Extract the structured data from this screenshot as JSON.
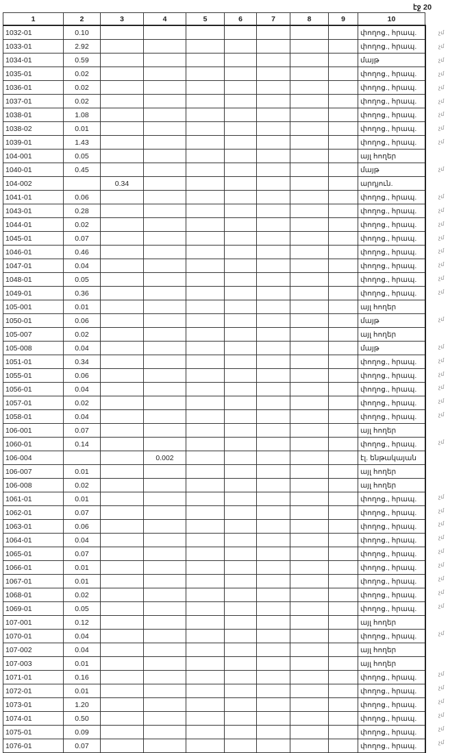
{
  "page_label": "էջ 20",
  "columns": [
    "1",
    "2",
    "3",
    "4",
    "5",
    "6",
    "7",
    "8",
    "9",
    "10"
  ],
  "rows": [
    {
      "c1": "1032-01",
      "c2": "0.10",
      "c3": "",
      "c4": "",
      "c10": "փողոց., հրապ.",
      "mark": "չմ"
    },
    {
      "c1": "1033-01",
      "c2": "2.92",
      "c3": "",
      "c4": "",
      "c10": "փողոց., հրապ.",
      "mark": "չմ"
    },
    {
      "c1": "1034-01",
      "c2": "0.59",
      "c3": "",
      "c4": "",
      "c10": "մայթ",
      "mark": "չմ"
    },
    {
      "c1": "1035-01",
      "c2": "0.02",
      "c3": "",
      "c4": "",
      "c10": "փողոց., հրապ.",
      "mark": "չմ"
    },
    {
      "c1": "1036-01",
      "c2": "0.02",
      "c3": "",
      "c4": "",
      "c10": "փողոց., հրապ.",
      "mark": "չմ"
    },
    {
      "c1": "1037-01",
      "c2": "0.02",
      "c3": "",
      "c4": "",
      "c10": "փողոց., հրապ.",
      "mark": "չմ"
    },
    {
      "c1": "1038-01",
      "c2": "1.08",
      "c3": "",
      "c4": "",
      "c10": "փողոց., հրապ.",
      "mark": "չմ"
    },
    {
      "c1": "1038-02",
      "c2": "0.01",
      "c3": "",
      "c4": "",
      "c10": "փողոց., հրապ.",
      "mark": "չմ"
    },
    {
      "c1": "1039-01",
      "c2": "1.43",
      "c3": "",
      "c4": "",
      "c10": "փողոց., հրապ.",
      "mark": "չմ"
    },
    {
      "c1": "104-001",
      "c2": "0.05",
      "c3": "",
      "c4": "",
      "c10": "այլ հողեր",
      "mark": ""
    },
    {
      "c1": "1040-01",
      "c2": "0.45",
      "c3": "",
      "c4": "",
      "c10": "մայթ",
      "mark": "չմ"
    },
    {
      "c1": "104-002",
      "c2": "",
      "c3": "0.34",
      "c4": "",
      "c10": "արդյուն.",
      "mark": ""
    },
    {
      "c1": "1041-01",
      "c2": "0.06",
      "c3": "",
      "c4": "",
      "c10": "փողոց., հրապ.",
      "mark": "չմ"
    },
    {
      "c1": "1043-01",
      "c2": "0.28",
      "c3": "",
      "c4": "",
      "c10": "փողոց., հրապ.",
      "mark": "չմ"
    },
    {
      "c1": "1044-01",
      "c2": "0.02",
      "c3": "",
      "c4": "",
      "c10": "փողոց., հրապ.",
      "mark": "չմ"
    },
    {
      "c1": "1045-01",
      "c2": "0.07",
      "c3": "",
      "c4": "",
      "c10": "փողոց., հրապ.",
      "mark": "չմ"
    },
    {
      "c1": "1046-01",
      "c2": "0.46",
      "c3": "",
      "c4": "",
      "c10": "փողոց., հրապ.",
      "mark": "չմ"
    },
    {
      "c1": "1047-01",
      "c2": "0.04",
      "c3": "",
      "c4": "",
      "c10": "փողոց., հրապ.",
      "mark": "չմ"
    },
    {
      "c1": "1048-01",
      "c2": "0.05",
      "c3": "",
      "c4": "",
      "c10": "փողոց., հրապ.",
      "mark": "չմ"
    },
    {
      "c1": "1049-01",
      "c2": "0.36",
      "c3": "",
      "c4": "",
      "c10": "փողոց., հրապ.",
      "mark": "չմ"
    },
    {
      "c1": "105-001",
      "c2": "0.01",
      "c3": "",
      "c4": "",
      "c10": "այլ հողեր",
      "mark": ""
    },
    {
      "c1": "1050-01",
      "c2": "0.06",
      "c3": "",
      "c4": "",
      "c10": "մայթ",
      "mark": "չմ"
    },
    {
      "c1": "105-007",
      "c2": "0.02",
      "c3": "",
      "c4": "",
      "c10": "այլ հողեր",
      "mark": ""
    },
    {
      "c1": "105-008",
      "c2": "0.04",
      "c3": "",
      "c4": "",
      "c10": "մայթ",
      "mark": "չմ"
    },
    {
      "c1": "1051-01",
      "c2": "0.34",
      "c3": "",
      "c4": "",
      "c10": "փողոց., հրապ.",
      "mark": "չմ"
    },
    {
      "c1": "1055-01",
      "c2": "0.06",
      "c3": "",
      "c4": "",
      "c10": "փողոց., հրապ.",
      "mark": "չմ"
    },
    {
      "c1": "1056-01",
      "c2": "0.04",
      "c3": "",
      "c4": "",
      "c10": "փողոց., հրապ.",
      "mark": "չմ"
    },
    {
      "c1": "1057-01",
      "c2": "0.02",
      "c3": "",
      "c4": "",
      "c10": "փողոց., հրապ.",
      "mark": "չմ"
    },
    {
      "c1": "1058-01",
      "c2": "0.04",
      "c3": "",
      "c4": "",
      "c10": "փողոց., հրապ.",
      "mark": "չմ"
    },
    {
      "c1": "106-001",
      "c2": "0.07",
      "c3": "",
      "c4": "",
      "c10": "այլ հողեր",
      "mark": ""
    },
    {
      "c1": "1060-01",
      "c2": "0.14",
      "c3": "",
      "c4": "",
      "c10": "փողոց., հրապ.",
      "mark": "չմ"
    },
    {
      "c1": "106-004",
      "c2": "",
      "c3": "",
      "c4": "0.002",
      "c10": "էլ. ենթակայան",
      "mark": ""
    },
    {
      "c1": "106-007",
      "c2": "0.01",
      "c3": "",
      "c4": "",
      "c10": "այլ հողեր",
      "mark": ""
    },
    {
      "c1": "106-008",
      "c2": "0.02",
      "c3": "",
      "c4": "",
      "c10": "այլ հողեր",
      "mark": ""
    },
    {
      "c1": "1061-01",
      "c2": "0.01",
      "c3": "",
      "c4": "",
      "c10": "փողոց., հրապ.",
      "mark": "չմ"
    },
    {
      "c1": "1062-01",
      "c2": "0.07",
      "c3": "",
      "c4": "",
      "c10": "փողոց., հրապ.",
      "mark": "չմ"
    },
    {
      "c1": "1063-01",
      "c2": "0.06",
      "c3": "",
      "c4": "",
      "c10": "փողոց., հրապ.",
      "mark": "չմ"
    },
    {
      "c1": "1064-01",
      "c2": "0.04",
      "c3": "",
      "c4": "",
      "c10": "փողոց., հրապ.",
      "mark": "չմ"
    },
    {
      "c1": "1065-01",
      "c2": "0.07",
      "c3": "",
      "c4": "",
      "c10": "փողոց., հրապ.",
      "mark": "չմ"
    },
    {
      "c1": "1066-01",
      "c2": "0.01",
      "c3": "",
      "c4": "",
      "c10": "փողոց., հրապ.",
      "mark": "չմ"
    },
    {
      "c1": "1067-01",
      "c2": "0.01",
      "c3": "",
      "c4": "",
      "c10": "փողոց., հրապ.",
      "mark": "չմ"
    },
    {
      "c1": "1068-01",
      "c2": "0.02",
      "c3": "",
      "c4": "",
      "c10": "փողոց., հրապ.",
      "mark": "չմ"
    },
    {
      "c1": "1069-01",
      "c2": "0.05",
      "c3": "",
      "c4": "",
      "c10": "փողոց., հրապ.",
      "mark": "չմ"
    },
    {
      "c1": "107-001",
      "c2": "0.12",
      "c3": "",
      "c4": "",
      "c10": "այլ հողեր",
      "mark": ""
    },
    {
      "c1": "1070-01",
      "c2": "0.04",
      "c3": "",
      "c4": "",
      "c10": "փողոց., հրապ.",
      "mark": "չմ"
    },
    {
      "c1": "107-002",
      "c2": "0.04",
      "c3": "",
      "c4": "",
      "c10": "այլ հողեր",
      "mark": ""
    },
    {
      "c1": "107-003",
      "c2": "0.01",
      "c3": "",
      "c4": "",
      "c10": "այլ հողեր",
      "mark": ""
    },
    {
      "c1": "1071-01",
      "c2": "0.16",
      "c3": "",
      "c4": "",
      "c10": "փողոց., հրապ.",
      "mark": "չմ"
    },
    {
      "c1": "1072-01",
      "c2": "0.01",
      "c3": "",
      "c4": "",
      "c10": "փողոց., հրապ.",
      "mark": "չմ"
    },
    {
      "c1": "1073-01",
      "c2": "1.20",
      "c3": "",
      "c4": "",
      "c10": "փողոց., հրապ.",
      "mark": "չմ"
    },
    {
      "c1": "1074-01",
      "c2": "0.50",
      "c3": "",
      "c4": "",
      "c10": "փողոց., հրապ.",
      "mark": "չմ"
    },
    {
      "c1": "1075-01",
      "c2": "0.09",
      "c3": "",
      "c4": "",
      "c10": "փողոց., հրապ.",
      "mark": "չմ"
    },
    {
      "c1": "1076-01",
      "c2": "0.07",
      "c3": "",
      "c4": "",
      "c10": "փողոց., հրապ.",
      "mark": "չմ"
    }
  ]
}
